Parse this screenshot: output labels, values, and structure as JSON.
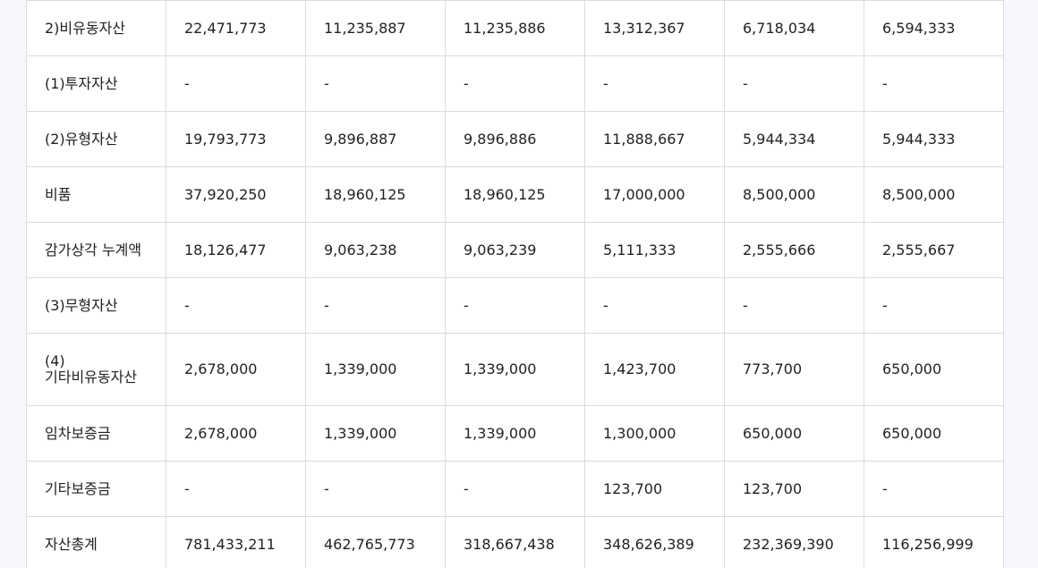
{
  "table": {
    "rows": [
      {
        "label": "2)비유동자산",
        "values": [
          "22,471,773",
          "11,235,887",
          "11,235,886",
          "13,312,367",
          "6,718,034",
          "6,594,333"
        ]
      },
      {
        "label": "(1)투자자산",
        "values": [
          "-",
          "-",
          "-",
          "-",
          "-",
          "-"
        ]
      },
      {
        "label": "(2)유형자산",
        "values": [
          "19,793,773",
          "9,896,887",
          "9,896,886",
          "11,888,667",
          "5,944,334",
          "5,944,333"
        ]
      },
      {
        "label": "비품",
        "values": [
          "37,920,250",
          "18,960,125",
          "18,960,125",
          "17,000,000",
          "8,500,000",
          "8,500,000"
        ]
      },
      {
        "label": "감가상각 누계액",
        "values": [
          "18,126,477",
          "9,063,238",
          "9,063,239",
          "5,111,333",
          "2,555,666",
          "2,555,667"
        ]
      },
      {
        "label": "(3)무형자산",
        "values": [
          "-",
          "-",
          "-",
          "-",
          "-",
          "-"
        ]
      },
      {
        "label_line1": "(4)",
        "label_line2": "기타비유동자산",
        "values": [
          "2,678,000",
          "1,339,000",
          "1,339,000",
          "1,423,700",
          "773,700",
          "650,000"
        ]
      },
      {
        "label": "임차보증금",
        "values": [
          "2,678,000",
          "1,339,000",
          "1,339,000",
          "1,300,000",
          "650,000",
          "650,000"
        ]
      },
      {
        "label": "기타보증금",
        "values": [
          "-",
          "-",
          "-",
          "123,700",
          "123,700",
          "-"
        ]
      },
      {
        "label": "자산총계",
        "values": [
          "781,433,211",
          "462,765,773",
          "318,667,438",
          "348,626,389",
          "232,369,390",
          "116,256,999"
        ]
      }
    ]
  }
}
